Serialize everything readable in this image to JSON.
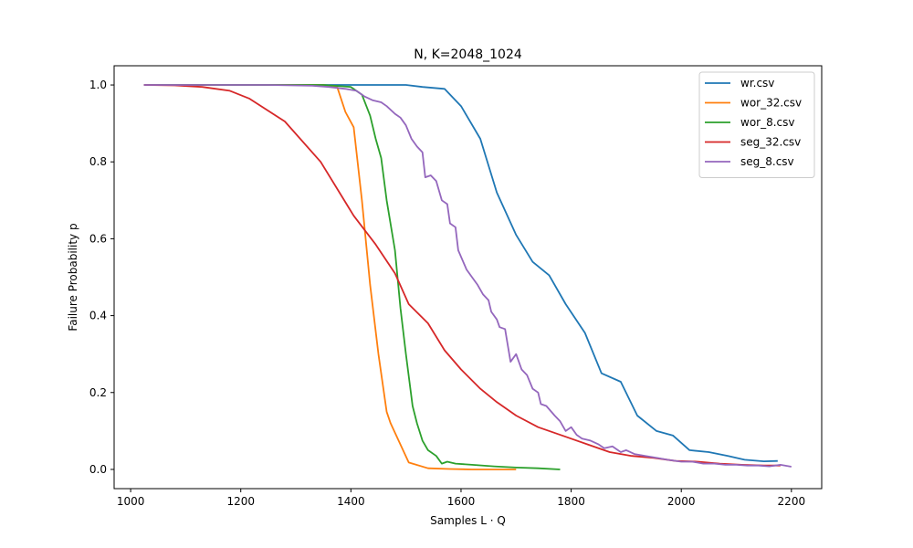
{
  "chart_data": {
    "type": "line",
    "title": "N, K=2048_1024",
    "xlabel": "Samples L · Q",
    "ylabel": "Failure Probability p",
    "xlim": [
      970,
      2255
    ],
    "ylim": [
      -0.05,
      1.05
    ],
    "xticks": [
      1000,
      1200,
      1400,
      1600,
      1800,
      2000,
      2200
    ],
    "yticks": [
      0.0,
      0.2,
      0.4,
      0.6,
      0.8,
      1.0
    ],
    "ytick_labels": [
      "0.0",
      "0.2",
      "0.4",
      "0.6",
      "0.8",
      "1.0"
    ],
    "legend_position": "top-right",
    "series": [
      {
        "name": "wr.csv",
        "color": "#1f77b4",
        "points": [
          [
            1024,
            1.0
          ],
          [
            1100,
            1.0
          ],
          [
            1200,
            1.0
          ],
          [
            1300,
            1.0
          ],
          [
            1400,
            1.0
          ],
          [
            1500,
            1.0
          ],
          [
            1530,
            0.995
          ],
          [
            1570,
            0.99
          ],
          [
            1600,
            0.945
          ],
          [
            1635,
            0.86
          ],
          [
            1665,
            0.72
          ],
          [
            1700,
            0.61
          ],
          [
            1730,
            0.54
          ],
          [
            1760,
            0.505
          ],
          [
            1790,
            0.43
          ],
          [
            1825,
            0.355
          ],
          [
            1855,
            0.25
          ],
          [
            1890,
            0.228
          ],
          [
            1920,
            0.14
          ],
          [
            1955,
            0.1
          ],
          [
            1985,
            0.088
          ],
          [
            2015,
            0.05
          ],
          [
            2050,
            0.045
          ],
          [
            2085,
            0.035
          ],
          [
            2115,
            0.025
          ],
          [
            2150,
            0.021
          ],
          [
            2175,
            0.022
          ]
        ]
      },
      {
        "name": "wor_32.csv",
        "color": "#ff7f0e",
        "points": [
          [
            1024,
            1.0
          ],
          [
            1200,
            1.0
          ],
          [
            1350,
            1.0
          ],
          [
            1375,
            0.995
          ],
          [
            1390,
            0.93
          ],
          [
            1405,
            0.89
          ],
          [
            1420,
            0.7
          ],
          [
            1435,
            0.48
          ],
          [
            1450,
            0.3
          ],
          [
            1465,
            0.15
          ],
          [
            1472,
            0.12
          ],
          [
            1505,
            0.018
          ],
          [
            1540,
            0.003
          ],
          [
            1580,
            0.001
          ],
          [
            1620,
            0.0
          ],
          [
            1660,
            0.0
          ],
          [
            1700,
            0.0
          ]
        ]
      },
      {
        "name": "wor_8.csv",
        "color": "#2ca02c",
        "points": [
          [
            1024,
            1.0
          ],
          [
            1200,
            1.0
          ],
          [
            1350,
            1.0
          ],
          [
            1400,
            0.995
          ],
          [
            1420,
            0.975
          ],
          [
            1435,
            0.92
          ],
          [
            1445,
            0.86
          ],
          [
            1455,
            0.81
          ],
          [
            1465,
            0.7
          ],
          [
            1480,
            0.57
          ],
          [
            1490,
            0.42
          ],
          [
            1500,
            0.3
          ],
          [
            1512,
            0.165
          ],
          [
            1520,
            0.12
          ],
          [
            1530,
            0.075
          ],
          [
            1540,
            0.05
          ],
          [
            1555,
            0.035
          ],
          [
            1565,
            0.015
          ],
          [
            1575,
            0.02
          ],
          [
            1590,
            0.015
          ],
          [
            1620,
            0.012
          ],
          [
            1660,
            0.008
          ],
          [
            1700,
            0.005
          ],
          [
            1740,
            0.003
          ],
          [
            1780,
            0.0
          ]
        ]
      },
      {
        "name": "seg_32.csv",
        "color": "#d62728",
        "points": [
          [
            1024,
            1.0
          ],
          [
            1080,
            0.999
          ],
          [
            1130,
            0.995
          ],
          [
            1180,
            0.985
          ],
          [
            1215,
            0.965
          ],
          [
            1280,
            0.905
          ],
          [
            1345,
            0.8
          ],
          [
            1405,
            0.66
          ],
          [
            1445,
            0.585
          ],
          [
            1480,
            0.51
          ],
          [
            1505,
            0.43
          ],
          [
            1540,
            0.38
          ],
          [
            1570,
            0.31
          ],
          [
            1600,
            0.26
          ],
          [
            1635,
            0.21
          ],
          [
            1665,
            0.175
          ],
          [
            1700,
            0.14
          ],
          [
            1740,
            0.11
          ],
          [
            1790,
            0.085
          ],
          [
            1830,
            0.065
          ],
          [
            1870,
            0.045
          ],
          [
            1910,
            0.035
          ],
          [
            1950,
            0.03
          ],
          [
            1990,
            0.022
          ],
          [
            2030,
            0.02
          ],
          [
            2070,
            0.015
          ],
          [
            2110,
            0.012
          ],
          [
            2150,
            0.01
          ],
          [
            2180,
            0.01
          ]
        ]
      },
      {
        "name": "seg_8.csv",
        "color": "#9467bd",
        "points": [
          [
            1024,
            1.0
          ],
          [
            1150,
            1.0
          ],
          [
            1250,
            1.0
          ],
          [
            1330,
            0.998
          ],
          [
            1360,
            0.995
          ],
          [
            1390,
            0.99
          ],
          [
            1410,
            0.985
          ],
          [
            1425,
            0.97
          ],
          [
            1440,
            0.96
          ],
          [
            1455,
            0.955
          ],
          [
            1465,
            0.945
          ],
          [
            1480,
            0.925
          ],
          [
            1490,
            0.915
          ],
          [
            1500,
            0.895
          ],
          [
            1510,
            0.86
          ],
          [
            1520,
            0.84
          ],
          [
            1530,
            0.825
          ],
          [
            1535,
            0.76
          ],
          [
            1545,
            0.765
          ],
          [
            1555,
            0.75
          ],
          [
            1565,
            0.7
          ],
          [
            1575,
            0.69
          ],
          [
            1580,
            0.64
          ],
          [
            1590,
            0.63
          ],
          [
            1595,
            0.57
          ],
          [
            1610,
            0.52
          ],
          [
            1620,
            0.5
          ],
          [
            1630,
            0.48
          ],
          [
            1640,
            0.455
          ],
          [
            1650,
            0.44
          ],
          [
            1655,
            0.41
          ],
          [
            1665,
            0.39
          ],
          [
            1670,
            0.37
          ],
          [
            1680,
            0.365
          ],
          [
            1690,
            0.28
          ],
          [
            1700,
            0.3
          ],
          [
            1710,
            0.26
          ],
          [
            1720,
            0.245
          ],
          [
            1730,
            0.21
          ],
          [
            1740,
            0.2
          ],
          [
            1745,
            0.17
          ],
          [
            1755,
            0.165
          ],
          [
            1770,
            0.14
          ],
          [
            1780,
            0.125
          ],
          [
            1790,
            0.1
          ],
          [
            1800,
            0.11
          ],
          [
            1810,
            0.09
          ],
          [
            1820,
            0.08
          ],
          [
            1835,
            0.075
          ],
          [
            1850,
            0.065
          ],
          [
            1860,
            0.055
          ],
          [
            1875,
            0.06
          ],
          [
            1890,
            0.045
          ],
          [
            1900,
            0.05
          ],
          [
            1915,
            0.04
          ],
          [
            1935,
            0.035
          ],
          [
            1955,
            0.03
          ],
          [
            1975,
            0.025
          ],
          [
            2000,
            0.02
          ],
          [
            2020,
            0.02
          ],
          [
            2040,
            0.015
          ],
          [
            2060,
            0.015
          ],
          [
            2080,
            0.012
          ],
          [
            2100,
            0.012
          ],
          [
            2120,
            0.01
          ],
          [
            2140,
            0.01
          ],
          [
            2160,
            0.008
          ],
          [
            2180,
            0.012
          ],
          [
            2200,
            0.007
          ]
        ]
      }
    ]
  }
}
